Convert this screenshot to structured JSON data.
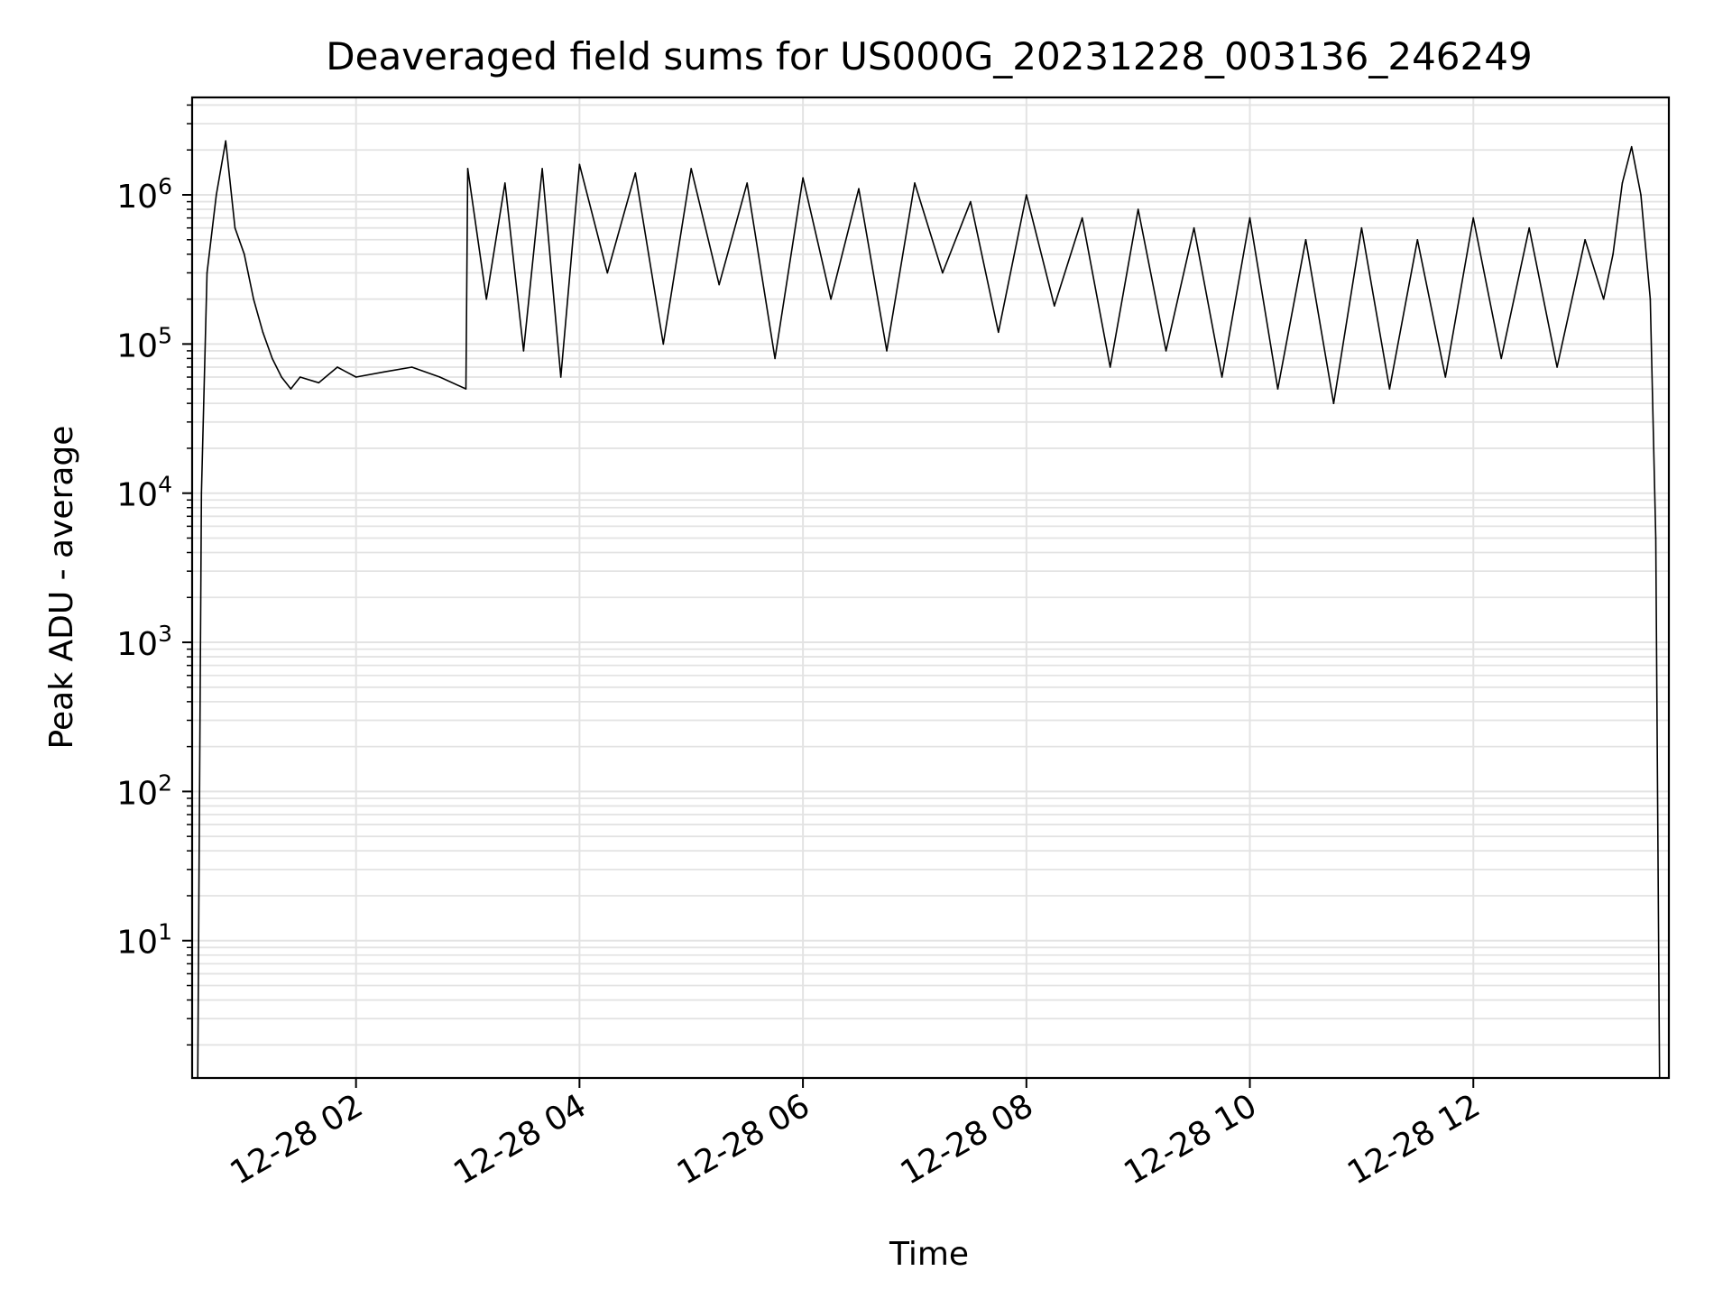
{
  "chart_data": {
    "type": "line",
    "title": "Deaveraged field sums for US000G_20231228_003136_246249",
    "xlabel": "Time",
    "ylabel": "Peak ADU - average",
    "yscale": "log",
    "grid": true,
    "x_tick_labels": [
      "12-28 02",
      "12-28 04",
      "12-28 06",
      "12-28 08",
      "12-28 10",
      "12-28 12"
    ],
    "y_tick_labels": [
      {
        "base": "10",
        "exp": "1"
      },
      {
        "base": "10",
        "exp": "2"
      },
      {
        "base": "10",
        "exp": "3"
      },
      {
        "base": "10",
        "exp": "4"
      },
      {
        "base": "10",
        "exp": "5"
      },
      {
        "base": "10",
        "exp": "6"
      }
    ],
    "ylim": [
      1.2,
      4500000
    ],
    "xlim": [
      "2023-12-28 00:32",
      "2023-12-28 13:45"
    ],
    "series": [
      {
        "color": "#000000",
        "x": [
          "2023-12-28 00:35",
          "2023-12-28 00:37",
          "2023-12-28 00:40",
          "2023-12-28 00:45",
          "2023-12-28 00:50",
          "2023-12-28 00:55",
          "2023-12-28 01:00",
          "2023-12-28 01:05",
          "2023-12-28 01:10",
          "2023-12-28 01:15",
          "2023-12-28 01:20",
          "2023-12-28 01:25",
          "2023-12-28 01:30",
          "2023-12-28 01:40",
          "2023-12-28 01:50",
          "2023-12-28 02:00",
          "2023-12-28 02:15",
          "2023-12-28 02:30",
          "2023-12-28 02:45",
          "2023-12-28 02:59",
          "2023-12-28 03:00",
          "2023-12-28 03:10",
          "2023-12-28 03:20",
          "2023-12-28 03:30",
          "2023-12-28 03:40",
          "2023-12-28 03:50",
          "2023-12-28 04:00",
          "2023-12-28 04:15",
          "2023-12-28 04:30",
          "2023-12-28 04:45",
          "2023-12-28 05:00",
          "2023-12-28 05:15",
          "2023-12-28 05:30",
          "2023-12-28 05:45",
          "2023-12-28 06:00",
          "2023-12-28 06:15",
          "2023-12-28 06:30",
          "2023-12-28 06:45",
          "2023-12-28 07:00",
          "2023-12-28 07:15",
          "2023-12-28 07:30",
          "2023-12-28 07:45",
          "2023-12-28 08:00",
          "2023-12-28 08:15",
          "2023-12-28 08:30",
          "2023-12-28 08:45",
          "2023-12-28 09:00",
          "2023-12-28 09:15",
          "2023-12-28 09:30",
          "2023-12-28 09:45",
          "2023-12-28 10:00",
          "2023-12-28 10:15",
          "2023-12-28 10:30",
          "2023-12-28 10:45",
          "2023-12-28 11:00",
          "2023-12-28 11:15",
          "2023-12-28 11:30",
          "2023-12-28 11:45",
          "2023-12-28 12:00",
          "2023-12-28 12:15",
          "2023-12-28 12:30",
          "2023-12-28 12:45",
          "2023-12-28 13:00",
          "2023-12-28 13:10",
          "2023-12-28 13:15",
          "2023-12-28 13:20",
          "2023-12-28 13:25",
          "2023-12-28 13:30",
          "2023-12-28 13:35",
          "2023-12-28 13:38",
          "2023-12-28 13:40"
        ],
        "y": [
          1.2,
          10000,
          300000,
          1000000,
          2300000,
          600000,
          400000,
          200000,
          120000,
          80000,
          60000,
          50000,
          60000,
          55000,
          70000,
          60000,
          65000,
          70000,
          60000,
          50000,
          1500000,
          200000,
          1200000,
          90000,
          1500000,
          60000,
          1600000,
          300000,
          1400000,
          100000,
          1500000,
          250000,
          1200000,
          80000,
          1300000,
          200000,
          1100000,
          90000,
          1200000,
          300000,
          900000,
          120000,
          1000000,
          180000,
          700000,
          70000,
          800000,
          90000,
          600000,
          60000,
          700000,
          50000,
          500000,
          40000,
          600000,
          50000,
          500000,
          60000,
          700000,
          80000,
          600000,
          70000,
          500000,
          200000,
          400000,
          1200000,
          2100000,
          1000000,
          200000,
          5000,
          1.2
        ]
      }
    ]
  }
}
